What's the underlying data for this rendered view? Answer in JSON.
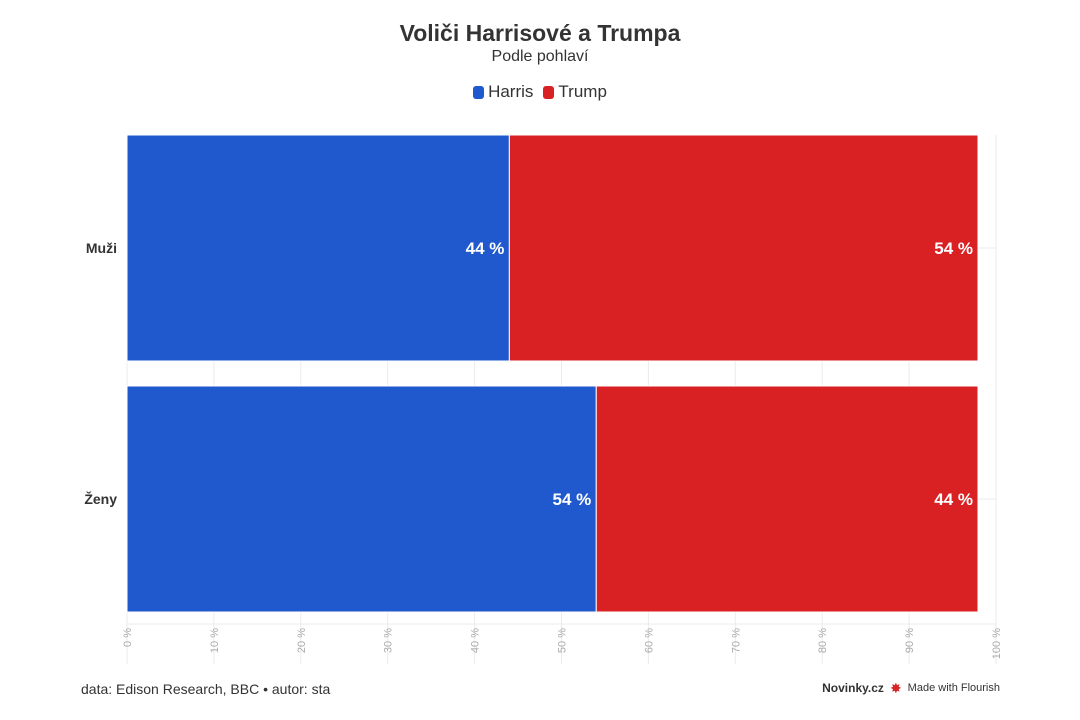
{
  "chart_data": {
    "type": "bar",
    "orientation": "horizontal",
    "stacked": true,
    "title": "Voliči Harrisové a Trumpa",
    "subtitle": "Podle pohlaví",
    "categories": [
      "Muži",
      "Ženy"
    ],
    "series": [
      {
        "name": "Harris",
        "color": "#2059cd",
        "values": [
          44,
          54
        ],
        "labels": [
          "44 %",
          "54 %"
        ]
      },
      {
        "name": "Trump",
        "color": "#d92124",
        "values": [
          54,
          44
        ],
        "labels": [
          "54 %",
          "44 %"
        ]
      }
    ],
    "xlim": [
      0,
      100
    ],
    "x_ticks": [
      "0 %",
      "10 %",
      "20 %",
      "30 %",
      "40 %",
      "50 %",
      "60 %",
      "70 %",
      "80 %",
      "90 %",
      "100 %"
    ],
    "legend": "top-center",
    "grid": true
  },
  "footer": {
    "source": "data: Edison Research, BBC • autor: sta",
    "brand": "Novinky.cz",
    "made_with": "Made with Flourish",
    "flourish_icon": "flourish-burst-icon"
  }
}
